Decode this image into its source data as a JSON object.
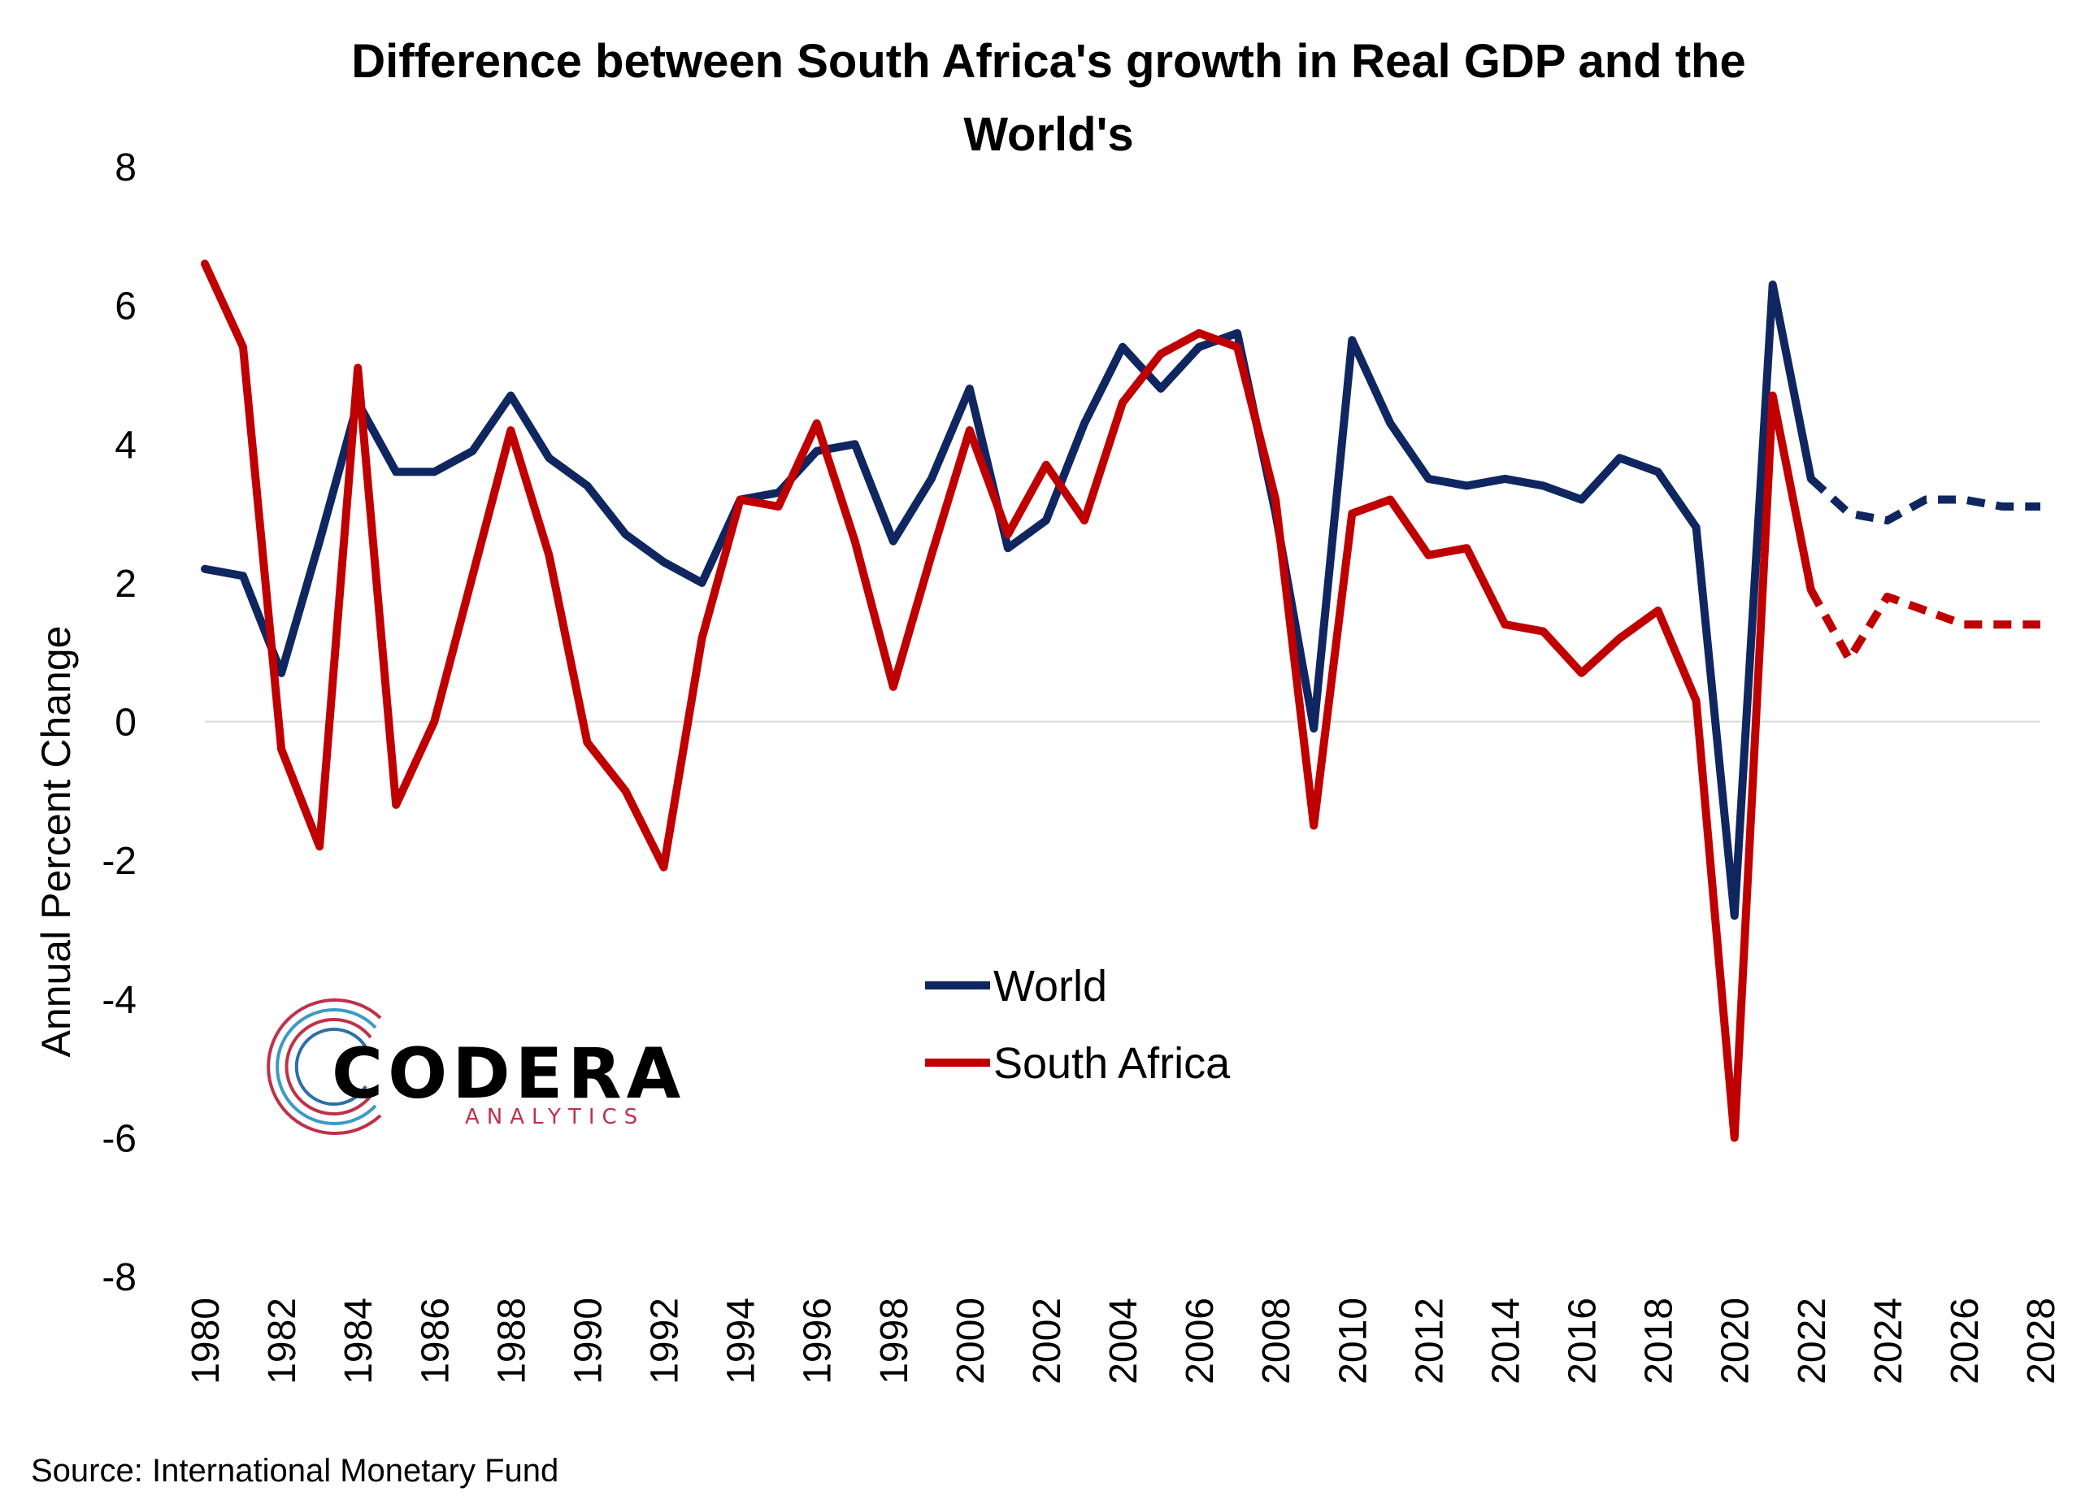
{
  "chart_data": {
    "type": "line",
    "title_lines": [
      "Difference between South Africa's growth in Real GDP and the",
      "World's"
    ],
    "ylabel": "Annual Percent Change",
    "ylim": [
      -8,
      8
    ],
    "yticks": [
      8,
      6,
      4,
      2,
      0,
      -2,
      -4,
      -6,
      -8
    ],
    "xlim": [
      1980,
      2028
    ],
    "xticks": [
      1980,
      1982,
      1984,
      1986,
      1988,
      1990,
      1992,
      1994,
      1996,
      1998,
      2000,
      2002,
      2004,
      2006,
      2008,
      2010,
      2012,
      2014,
      2016,
      2018,
      2020,
      2022,
      2024,
      2026,
      2028
    ],
    "forecast_from": 2022,
    "legend_position": "center-bottom",
    "x": [
      1980,
      1981,
      1982,
      1983,
      1984,
      1985,
      1986,
      1987,
      1988,
      1989,
      1990,
      1991,
      1992,
      1993,
      1994,
      1995,
      1996,
      1997,
      1998,
      1999,
      2000,
      2001,
      2002,
      2003,
      2004,
      2005,
      2006,
      2007,
      2008,
      2009,
      2010,
      2011,
      2012,
      2013,
      2014,
      2015,
      2016,
      2017,
      2018,
      2019,
      2020,
      2021,
      2022,
      2023,
      2024,
      2025,
      2026,
      2027,
      2028
    ],
    "series": [
      {
        "name": "World",
        "color": "#0f2660",
        "values": [
          2.2,
          2.1,
          0.7,
          2.6,
          4.6,
          3.6,
          3.6,
          3.9,
          4.7,
          3.8,
          3.4,
          2.7,
          2.3,
          2.0,
          3.2,
          3.3,
          3.9,
          4.0,
          2.6,
          3.5,
          4.8,
          2.5,
          2.9,
          4.3,
          5.4,
          4.8,
          5.4,
          5.6,
          3.0,
          -0.1,
          5.5,
          4.3,
          3.5,
          3.4,
          3.5,
          3.4,
          3.2,
          3.8,
          3.6,
          2.8,
          -2.8,
          6.3,
          3.5,
          3.0,
          2.9,
          3.2,
          3.2,
          3.1,
          3.1
        ]
      },
      {
        "name": "South Africa",
        "color": "#c00000",
        "values": [
          6.6,
          5.4,
          -0.4,
          -1.8,
          5.1,
          -1.2,
          0.0,
          2.1,
          4.2,
          2.4,
          -0.3,
          -1.0,
          -2.1,
          1.2,
          3.2,
          3.1,
          4.3,
          2.6,
          0.5,
          2.4,
          4.2,
          2.7,
          3.7,
          2.9,
          4.6,
          5.3,
          5.6,
          5.4,
          3.2,
          -1.5,
          3.0,
          3.2,
          2.4,
          2.5,
          1.4,
          1.3,
          0.7,
          1.2,
          1.6,
          0.3,
          -6.0,
          4.7,
          1.9,
          0.9,
          1.8,
          1.6,
          1.4,
          1.4,
          1.4
        ]
      }
    ]
  },
  "logo": {
    "name": "CODERA",
    "tagline": "ANALYTICS"
  },
  "source": "Source: International Monetary Fund"
}
